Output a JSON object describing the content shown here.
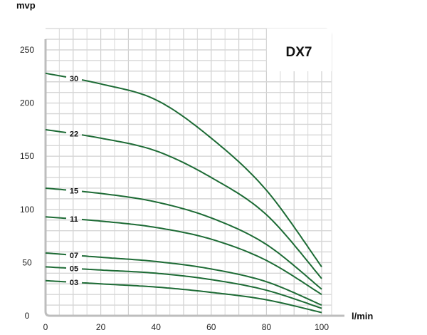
{
  "chart_data": {
    "type": "line",
    "title": "DX7",
    "xlabel": "l/min",
    "ylabel": "mvp",
    "xlim": [
      0,
      100
    ],
    "ylim": [
      0,
      250
    ],
    "x_ticks": [
      0,
      20,
      40,
      60,
      80,
      100
    ],
    "y_ticks": [
      0,
      50,
      100,
      150,
      200,
      250
    ],
    "grid": true,
    "line_color": "#1d6b35",
    "x": [
      0,
      20,
      40,
      60,
      80,
      100
    ],
    "series": [
      {
        "name": "30",
        "values": [
          228,
          218,
          203,
          167,
          118,
          46
        ]
      },
      {
        "name": "22",
        "values": [
          175,
          167,
          155,
          130,
          95,
          35
        ]
      },
      {
        "name": "15",
        "values": [
          120,
          115,
          107,
          92,
          67,
          25
        ]
      },
      {
        "name": "11",
        "values": [
          93,
          89,
          83,
          72,
          52,
          20
        ]
      },
      {
        "name": "07",
        "values": [
          59,
          55,
          51,
          44,
          32,
          10
        ]
      },
      {
        "name": "05",
        "values": [
          46,
          43,
          40,
          34,
          24,
          7
        ]
      },
      {
        "name": "03",
        "values": [
          33,
          30,
          27,
          22,
          15,
          3
        ]
      }
    ]
  }
}
